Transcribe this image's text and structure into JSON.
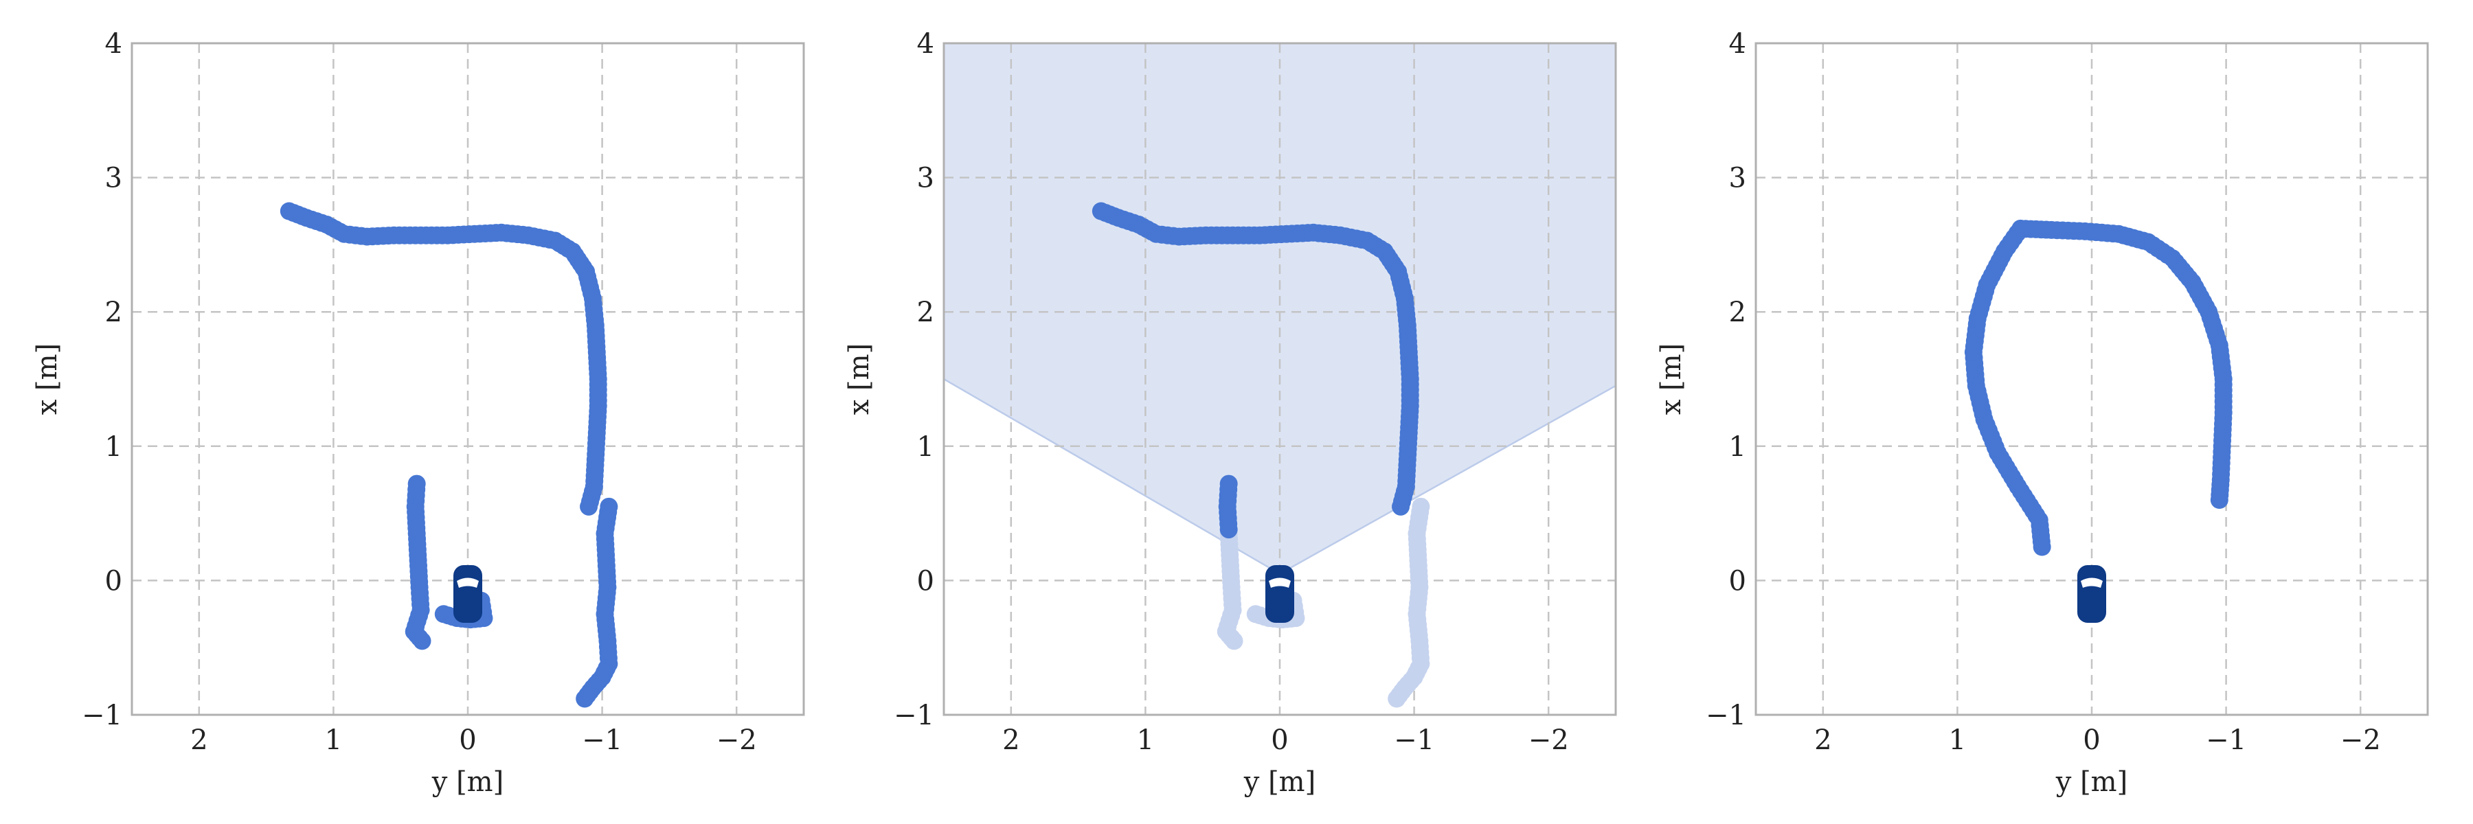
{
  "colors": {
    "trajectory": "#4777d3",
    "trajectory_faded": "#c6d3ee",
    "fov_fill": "#dce4f4",
    "fov_edge": "#bccbea",
    "vehicle": "#0e3a86",
    "vehicle_window": "#ffffff",
    "frame": "#b0b0b0",
    "grid": "#c4c4c4",
    "text": "#222222"
  },
  "chart_data": [
    {
      "type": "scatter",
      "title": "",
      "xlabel": "y [m]",
      "ylabel": "x [m]",
      "xlim": [
        2.5,
        -2.5
      ],
      "ylim": [
        -1,
        4
      ],
      "x_reversed": true,
      "xticks": [
        2,
        1,
        0,
        -1,
        -2
      ],
      "xtick_labels": [
        "2",
        "1",
        "0",
        "−1",
        "−2"
      ],
      "yticks": [
        -1,
        0,
        1,
        2,
        3,
        4
      ],
      "ytick_labels": [
        "−1",
        "0",
        "1",
        "2",
        "3",
        "4"
      ],
      "grid": true,
      "vehicle_marker": {
        "y": 0,
        "x": -0.1
      },
      "field_of_view": null,
      "series": [
        {
          "style": "main",
          "points": [
            [
              0.38,
              0.72
            ],
            [
              0.39,
              0.55
            ],
            [
              0.38,
              0.35
            ],
            [
              0.37,
              0.15
            ],
            [
              0.36,
              -0.05
            ],
            [
              0.35,
              -0.22
            ],
            [
              0.4,
              -0.38
            ],
            [
              0.34,
              -0.45
            ]
          ]
        },
        {
          "style": "main",
          "points": [
            [
              0.18,
              -0.25
            ],
            [
              0.08,
              -0.28
            ],
            [
              -0.02,
              -0.29
            ],
            [
              -0.12,
              -0.28
            ],
            [
              -0.1,
              -0.15
            ]
          ]
        },
        {
          "style": "main",
          "points": [
            [
              -1.05,
              0.55
            ],
            [
              -1.02,
              0.35
            ],
            [
              -1.03,
              0.15
            ],
            [
              -1.04,
              -0.05
            ],
            [
              -1.02,
              -0.25
            ],
            [
              -1.04,
              -0.45
            ],
            [
              -1.05,
              -0.62
            ],
            [
              -1.0,
              -0.72
            ],
            [
              -0.93,
              -0.8
            ],
            [
              -0.87,
              -0.88
            ]
          ]
        },
        {
          "style": "main",
          "points": [
            [
              1.33,
              2.75
            ],
            [
              1.2,
              2.7
            ],
            [
              1.05,
              2.65
            ],
            [
              0.92,
              2.58
            ],
            [
              0.75,
              2.56
            ],
            [
              0.55,
              2.57
            ],
            [
              0.35,
              2.57
            ],
            [
              0.15,
              2.57
            ],
            [
              -0.05,
              2.58
            ],
            [
              -0.25,
              2.59
            ],
            [
              -0.45,
              2.57
            ],
            [
              -0.65,
              2.53
            ],
            [
              -0.78,
              2.45
            ],
            [
              -0.88,
              2.3
            ],
            [
              -0.93,
              2.1
            ],
            [
              -0.95,
              1.9
            ],
            [
              -0.96,
              1.7
            ],
            [
              -0.97,
              1.5
            ],
            [
              -0.97,
              1.3
            ],
            [
              -0.96,
              1.1
            ],
            [
              -0.95,
              0.9
            ],
            [
              -0.94,
              0.7
            ],
            [
              -0.9,
              0.55
            ]
          ]
        }
      ]
    },
    {
      "type": "scatter",
      "title": "",
      "xlabel": "y [m]",
      "ylabel": "x [m]",
      "xlim": [
        2.5,
        -2.5
      ],
      "ylim": [
        -1,
        4
      ],
      "x_reversed": true,
      "xticks": [
        2,
        1,
        0,
        -1,
        -2
      ],
      "xtick_labels": [
        "2",
        "1",
        "0",
        "−1",
        "−2"
      ],
      "yticks": [
        -1,
        0,
        1,
        2,
        3,
        4
      ],
      "ytick_labels": [
        "−1",
        "0",
        "1",
        "2",
        "3",
        "4"
      ],
      "grid": true,
      "vehicle_marker": {
        "y": 0,
        "x": -0.1
      },
      "field_of_view": {
        "apex": [
          0,
          0.05
        ],
        "left_edge": [
          2.5,
          1.5
        ],
        "right_edge": [
          -2.5,
          1.45
        ]
      },
      "series": [
        {
          "style": "faded",
          "points": [
            [
              0.38,
              0.35
            ],
            [
              0.37,
              0.15
            ],
            [
              0.36,
              -0.05
            ],
            [
              0.35,
              -0.22
            ],
            [
              0.4,
              -0.38
            ],
            [
              0.34,
              -0.45
            ]
          ]
        },
        {
          "style": "faded",
          "points": [
            [
              0.18,
              -0.25
            ],
            [
              0.08,
              -0.28
            ],
            [
              -0.02,
              -0.29
            ],
            [
              -0.12,
              -0.28
            ],
            [
              -0.1,
              -0.15
            ]
          ]
        },
        {
          "style": "faded",
          "points": [
            [
              -1.05,
              0.55
            ],
            [
              -1.02,
              0.35
            ],
            [
              -1.03,
              0.15
            ],
            [
              -1.04,
              -0.05
            ],
            [
              -1.02,
              -0.25
            ],
            [
              -1.04,
              -0.45
            ],
            [
              -1.05,
              -0.62
            ],
            [
              -1.0,
              -0.72
            ],
            [
              -0.93,
              -0.8
            ],
            [
              -0.87,
              -0.88
            ]
          ]
        },
        {
          "style": "main",
          "points": [
            [
              0.38,
              0.72
            ],
            [
              0.39,
              0.55
            ],
            [
              0.38,
              0.38
            ]
          ]
        },
        {
          "style": "main",
          "points": [
            [
              1.33,
              2.75
            ],
            [
              1.2,
              2.7
            ],
            [
              1.05,
              2.65
            ],
            [
              0.92,
              2.58
            ],
            [
              0.75,
              2.56
            ],
            [
              0.55,
              2.57
            ],
            [
              0.35,
              2.57
            ],
            [
              0.15,
              2.57
            ],
            [
              -0.05,
              2.58
            ],
            [
              -0.25,
              2.59
            ],
            [
              -0.45,
              2.57
            ],
            [
              -0.65,
              2.53
            ],
            [
              -0.78,
              2.45
            ],
            [
              -0.88,
              2.3
            ],
            [
              -0.93,
              2.1
            ],
            [
              -0.95,
              1.9
            ],
            [
              -0.96,
              1.7
            ],
            [
              -0.97,
              1.5
            ],
            [
              -0.97,
              1.3
            ],
            [
              -0.96,
              1.1
            ],
            [
              -0.95,
              0.9
            ],
            [
              -0.94,
              0.7
            ],
            [
              -0.9,
              0.55
            ]
          ]
        }
      ]
    },
    {
      "type": "scatter",
      "title": "",
      "xlabel": "y [m]",
      "ylabel": "x [m]",
      "xlim": [
        2.5,
        -2.5
      ],
      "ylim": [
        -1,
        4
      ],
      "x_reversed": true,
      "xticks": [
        2,
        1,
        0,
        -1,
        -2
      ],
      "xtick_labels": [
        "2",
        "1",
        "0",
        "−1",
        "−2"
      ],
      "yticks": [
        -1,
        0,
        1,
        2,
        3,
        4
      ],
      "ytick_labels": [
        "−1",
        "0",
        "1",
        "2",
        "3",
        "4"
      ],
      "grid": true,
      "vehicle_marker": {
        "y": 0,
        "x": -0.1
      },
      "field_of_view": null,
      "series": [
        {
          "style": "main",
          "points": [
            [
              0.37,
              0.25
            ],
            [
              0.39,
              0.45
            ],
            [
              0.55,
              0.7
            ],
            [
              0.7,
              0.95
            ],
            [
              0.8,
              1.2
            ],
            [
              0.86,
              1.45
            ],
            [
              0.88,
              1.7
            ],
            [
              0.85,
              1.95
            ],
            [
              0.78,
              2.2
            ],
            [
              0.65,
              2.45
            ],
            [
              0.53,
              2.62
            ],
            [
              0.3,
              2.61
            ],
            [
              0.05,
              2.6
            ],
            [
              -0.2,
              2.58
            ],
            [
              -0.42,
              2.52
            ],
            [
              -0.6,
              2.4
            ],
            [
              -0.75,
              2.22
            ],
            [
              -0.87,
              2.0
            ],
            [
              -0.95,
              1.75
            ],
            [
              -0.98,
              1.5
            ],
            [
              -0.98,
              1.25
            ],
            [
              -0.97,
              1.0
            ],
            [
              -0.96,
              0.75
            ],
            [
              -0.95,
              0.6
            ]
          ]
        }
      ]
    }
  ]
}
